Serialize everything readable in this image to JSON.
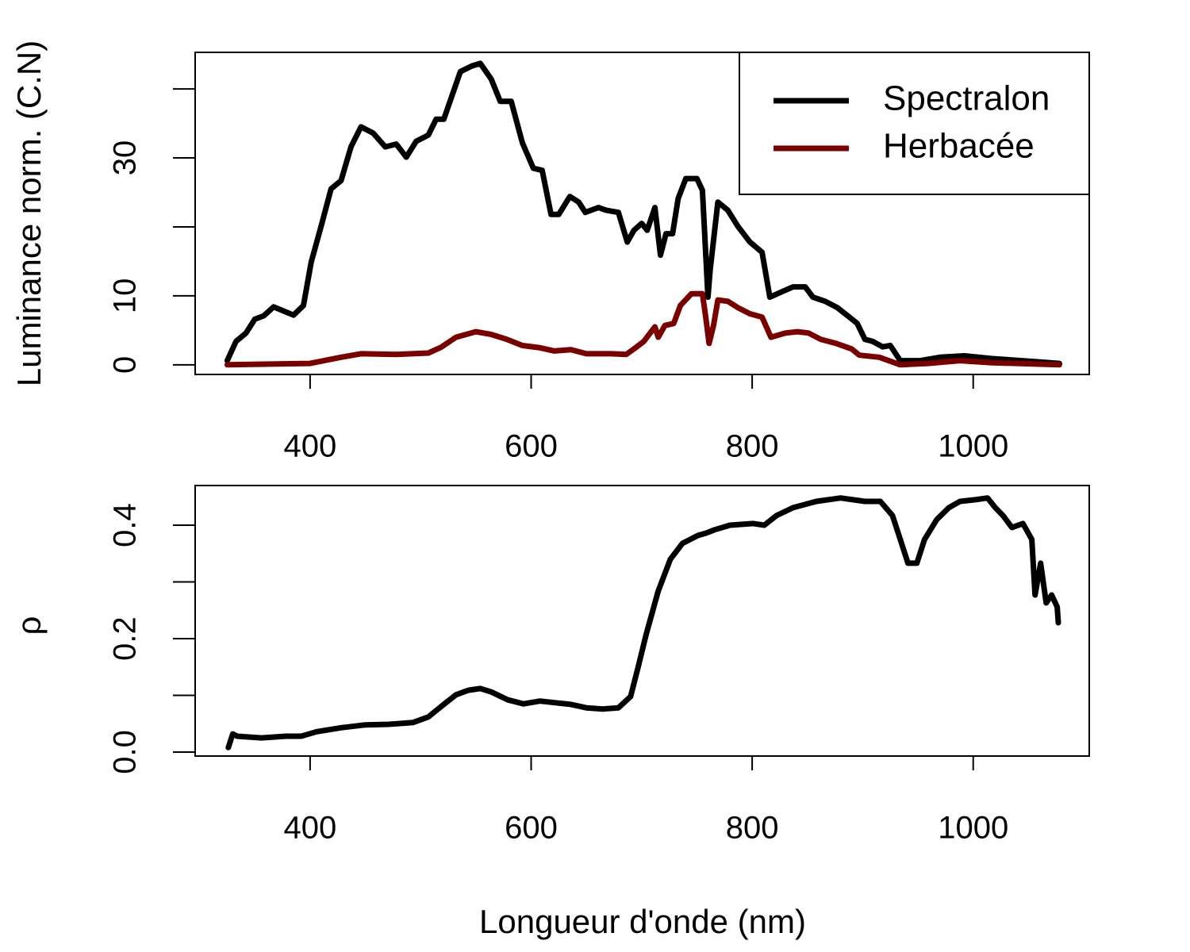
{
  "chart_data": [
    {
      "type": "line",
      "ylabel": "Luminance norm. (C.N)",
      "legend": "topright",
      "xlim": [
        296,
        1105
      ],
      "ylim": [
        -1.4,
        45.3
      ],
      "xticks": [
        400,
        600,
        800,
        1000
      ],
      "yticks": [
        0,
        10,
        {
          "value": 20,
          "label": null
        },
        30,
        {
          "value": 40,
          "label": null
        }
      ],
      "series": [
        {
          "name": "Spectralon",
          "color": "#000000",
          "x": [
            325,
            333,
            342,
            350,
            358,
            367,
            376,
            385,
            394,
            401,
            410,
            419,
            428,
            437,
            446,
            457,
            468,
            478,
            487,
            496,
            507,
            514,
            521,
            529,
            536,
            546,
            554,
            564,
            572,
            582,
            592,
            602,
            610,
            618,
            625,
            635,
            643,
            649,
            654,
            661,
            668,
            679,
            687,
            693,
            700,
            705,
            712,
            717,
            722,
            728,
            733,
            740,
            750,
            755,
            760,
            762,
            769,
            778,
            787,
            798,
            809,
            816,
            827,
            837,
            848,
            855,
            866,
            877,
            888,
            895,
            902,
            909,
            918,
            925,
            934,
            952,
            970,
            992,
            1017,
            1053,
            1078
          ],
          "values": [
            0.6,
            3.4,
            4.6,
            6.6,
            7.1,
            8.4,
            7.8,
            7.2,
            8.6,
            14.9,
            20.1,
            25.5,
            26.7,
            31.6,
            34.5,
            33.6,
            31.6,
            32.0,
            30.1,
            32.4,
            33.3,
            35.6,
            35.6,
            39.3,
            42.5,
            43.3,
            43.7,
            41.4,
            38.2,
            38.2,
            32.2,
            28.5,
            28.2,
            21.8,
            21.8,
            24.4,
            23.6,
            22.1,
            22.4,
            22.8,
            22.4,
            22.1,
            17.8,
            19.5,
            20.5,
            19.5,
            22.8,
            15.9,
            19.0,
            19.0,
            24.1,
            27.0,
            27.0,
            25.3,
            9.8,
            13.8,
            23.6,
            22.4,
            20.1,
            17.8,
            16.3,
            9.8,
            10.6,
            11.3,
            11.3,
            9.8,
            9.2,
            8.3,
            6.9,
            6.0,
            3.7,
            3.4,
            2.6,
            2.8,
            0.6,
            0.6,
            1.1,
            1.3,
            0.9,
            0.5,
            0.2
          ]
        },
        {
          "name": "Herbacée",
          "color": "#7a0000",
          "x": [
            325,
            400,
            428,
            446,
            478,
            507,
            518,
            532,
            550,
            564,
            578,
            592,
            607,
            621,
            636,
            650,
            672,
            686,
            693,
            702,
            712,
            715,
            721,
            729,
            735,
            745,
            755,
            758,
            761,
            765,
            769,
            778,
            787,
            798,
            809,
            817,
            830,
            841,
            851,
            862,
            876,
            890,
            897,
            915,
            934,
            959,
            988,
            1017,
            1078
          ],
          "values": [
            0,
            0.2,
            1.1,
            1.6,
            1.5,
            1.7,
            2.5,
            4.0,
            4.8,
            4.4,
            3.7,
            2.8,
            2.5,
            2.0,
            2.2,
            1.6,
            1.6,
            1.5,
            2.3,
            3.4,
            5.5,
            4.0,
            5.7,
            6.0,
            8.6,
            10.3,
            10.3,
            6.9,
            3.1,
            5.7,
            9.4,
            9.2,
            8.3,
            7.4,
            6.9,
            4.0,
            4.6,
            4.8,
            4.6,
            3.7,
            3.1,
            2.3,
            1.4,
            1.1,
            0,
            0.2,
            0.6,
            0.3,
            0
          ]
        }
      ]
    },
    {
      "type": "line",
      "ylabel": "ρ",
      "xlabel": "Longueur d'onde (nm)",
      "xlim": [
        296,
        1105
      ],
      "ylim": [
        -0.007,
        0.47
      ],
      "xticks": [
        400,
        600,
        800,
        1000
      ],
      "yticks": [
        {
          "value": 0,
          "label": "0.0"
        },
        {
          "value": 0.1,
          "label": null
        },
        0.2,
        {
          "value": 0.3,
          "label": null
        },
        0.4
      ],
      "series": [
        {
          "color": "#000000",
          "x": [
            326,
            330,
            334,
            356,
            378,
            392,
            406,
            428,
            450,
            471,
            493,
            507,
            521,
            532,
            543,
            554,
            564,
            579,
            593,
            608,
            622,
            636,
            650,
            665,
            679,
            690,
            697,
            704,
            715,
            726,
            737,
            751,
            758,
            766,
            780,
            801,
            811,
            822,
            837,
            858,
            880,
            891,
            902,
            916,
            927,
            934,
            941,
            949,
            956,
            967,
            978,
            988,
            1002,
            1013,
            1020,
            1027,
            1035,
            1045,
            1053,
            1056,
            1061,
            1066,
            1071,
            1076,
            1077
          ],
          "values": [
            0.008,
            0.032,
            0.028,
            0.025,
            0.028,
            0.028,
            0.036,
            0.043,
            0.048,
            0.049,
            0.052,
            0.062,
            0.084,
            0.101,
            0.109,
            0.112,
            0.106,
            0.092,
            0.085,
            0.09,
            0.087,
            0.084,
            0.078,
            0.076,
            0.078,
            0.098,
            0.151,
            0.207,
            0.284,
            0.34,
            0.368,
            0.382,
            0.386,
            0.392,
            0.4,
            0.403,
            0.4,
            0.417,
            0.431,
            0.442,
            0.448,
            0.445,
            0.442,
            0.442,
            0.417,
            0.375,
            0.333,
            0.333,
            0.375,
            0.41,
            0.431,
            0.442,
            0.445,
            0.448,
            0.431,
            0.417,
            0.396,
            0.403,
            0.375,
            0.277,
            0.333,
            0.263,
            0.277,
            0.256,
            0.228
          ]
        }
      ]
    }
  ]
}
